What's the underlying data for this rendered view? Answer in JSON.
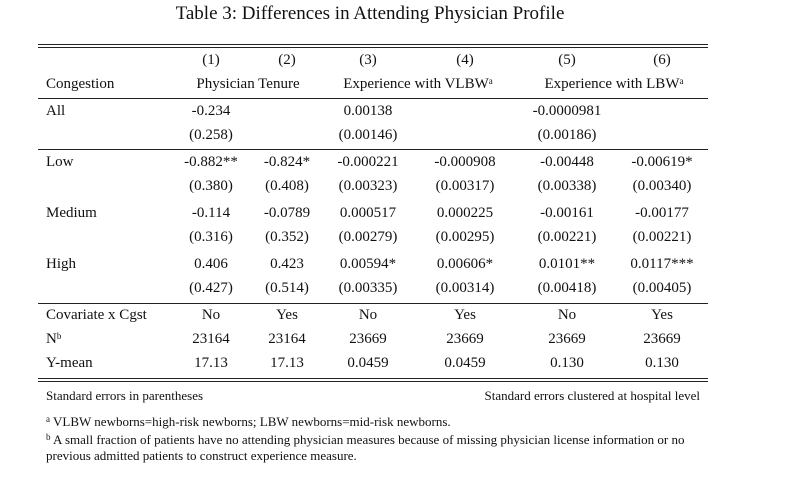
{
  "title": "Table 3: Differences in Attending Physician Profile",
  "columns": {
    "numbers": [
      "(1)",
      "(2)",
      "(3)",
      "(4)",
      "(5)",
      "(6)"
    ],
    "row_label": "Congestion",
    "group1": "Physician Tenure",
    "group2": "Experience with VLBW",
    "group2_sup": "a",
    "group3": "Experience with LBW",
    "group3_sup": "a"
  },
  "rows": {
    "all": {
      "label": "All",
      "est": [
        "-0.234",
        "",
        "0.00138",
        "",
        "-0.0000981",
        ""
      ],
      "se": [
        "(0.258)",
        "",
        "(0.00146)",
        "",
        "(0.00186)",
        ""
      ]
    },
    "low": {
      "label": "Low",
      "est": [
        "-0.882**",
        "-0.824*",
        "-0.000221",
        "-0.000908",
        "-0.00448",
        "-0.00619*"
      ],
      "se": [
        "(0.380)",
        "(0.408)",
        "(0.00323)",
        "(0.00317)",
        "(0.00338)",
        "(0.00340)"
      ]
    },
    "medium": {
      "label": "Medium",
      "est": [
        "-0.114",
        "-0.0789",
        "0.000517",
        "0.000225",
        "-0.00161",
        "-0.00177"
      ],
      "se": [
        "(0.316)",
        "(0.352)",
        "(0.00279)",
        "(0.00295)",
        "(0.00221)",
        "(0.00221)"
      ]
    },
    "high": {
      "label": "High",
      "est": [
        "0.406",
        "0.423",
        "0.00594*",
        "0.00606*",
        "0.0101**",
        "0.0117***"
      ],
      "se": [
        "(0.427)",
        "(0.514)",
        "(0.00335)",
        "(0.00314)",
        "(0.00418)",
        "(0.00405)"
      ]
    }
  },
  "stats": {
    "covariate": {
      "label": "Covariate x Cgst",
      "values": [
        "No",
        "Yes",
        "No",
        "Yes",
        "No",
        "Yes"
      ]
    },
    "n": {
      "label": "N",
      "label_sup": "b",
      "values": [
        "23164",
        "23164",
        "23669",
        "23669",
        "23669",
        "23669"
      ]
    },
    "ymean": {
      "label": "Y-mean",
      "values": [
        "17.13",
        "17.13",
        "0.0459",
        "0.0459",
        "0.130",
        "0.130"
      ]
    }
  },
  "footer": {
    "left": "Standard errors in parentheses",
    "right": "Standard errors clustered at hospital level"
  },
  "notes": {
    "a_mark": "a",
    "a": "VLBW newborns=high-risk newborns; LBW newborns=mid-risk newborns.",
    "b_mark": "b",
    "b": "A small fraction of patients have no attending physician measures because of missing physician license information or no previous admitted patients to construct experience measure."
  }
}
